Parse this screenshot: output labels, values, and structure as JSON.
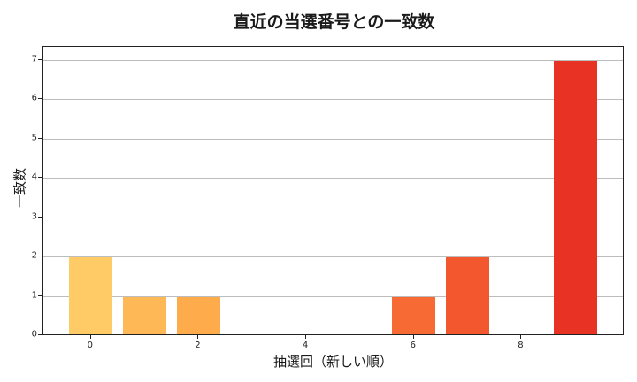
{
  "chart_data": {
    "type": "bar",
    "title": "直近の当選番号との一致数",
    "xlabel": "抽選回（新しい順）",
    "ylabel": "一致数",
    "categories": [
      0,
      1,
      2,
      3,
      4,
      5,
      6,
      7,
      8,
      9
    ],
    "values": [
      2,
      1,
      1,
      0,
      0,
      0,
      1,
      2,
      0,
      7
    ],
    "colors": [
      "#FECB66",
      "#FEB956",
      "#FDAB4B",
      "#FD9A44",
      "#FC8A3E",
      "#FC7A38",
      "#F86A33",
      "#F3572D",
      "#EE4428",
      "#E83224"
    ],
    "xticks": [
      0,
      2,
      4,
      6,
      8
    ],
    "yticks": [
      0,
      1,
      2,
      3,
      4,
      5,
      6,
      7
    ],
    "xlim": [
      -0.9,
      9.9
    ],
    "ylim": [
      0,
      7.35
    ],
    "grid": "y",
    "legend": null
  }
}
